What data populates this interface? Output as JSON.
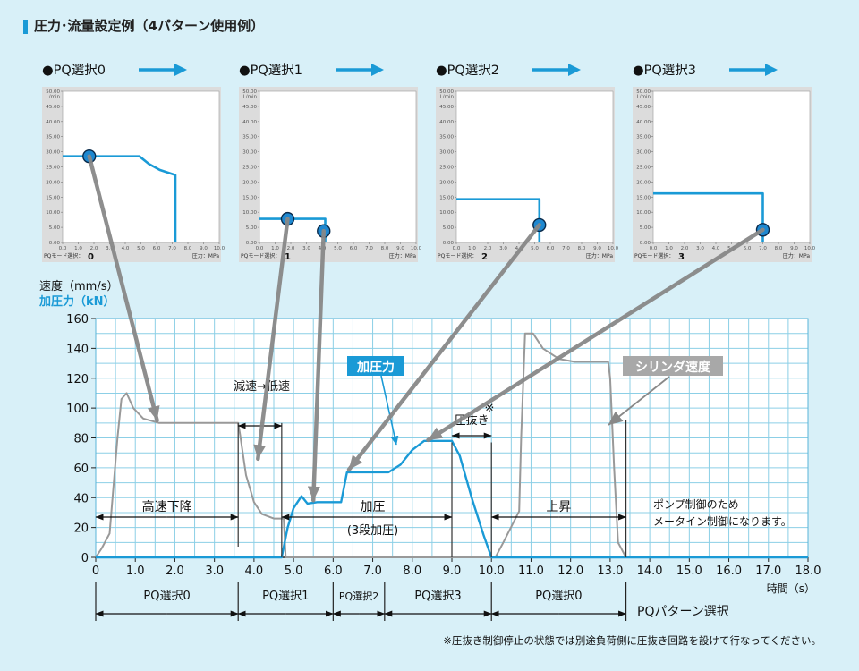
{
  "header": {
    "title": "圧力･流量設定例（4パターン使用例）"
  },
  "colors": {
    "background": "#d8f0f8",
    "accent": "#1a9ad6",
    "gray_line": "#999999",
    "grid": "#8ccfe6",
    "marker": "#1e88d0"
  },
  "pq_panels": [
    {
      "title": "●PQ選択0",
      "mode_label": "PQモード選択：0",
      "pressure_label": "圧力：MPa",
      "curve": [
        [
          0,
          28.5
        ],
        [
          4.9,
          28.5
        ],
        [
          5.5,
          26
        ],
        [
          6.2,
          24
        ],
        [
          7.2,
          22.3
        ],
        [
          7.2,
          0
        ]
      ],
      "marker": [
        1.7,
        28.5
      ]
    },
    {
      "title": "●PQ選択1",
      "mode_label": "PQモード選択：1",
      "pressure_label": "圧力：MPa",
      "curve": [
        [
          0,
          7.8
        ],
        [
          4.2,
          7.8
        ],
        [
          4.2,
          0
        ]
      ],
      "marker": [
        1.8,
        7.8
      ],
      "marker2": [
        4.1,
        3.8
      ]
    },
    {
      "title": "●PQ選択2",
      "mode_label": "PQモード選択：2",
      "pressure_label": "圧力：MPa",
      "curve": [
        [
          0,
          14.3
        ],
        [
          5.3,
          14.3
        ],
        [
          5.3,
          0
        ]
      ],
      "marker": [
        5.3,
        5.8
      ]
    },
    {
      "title": "●PQ選択3",
      "mode_label": "PQモード選択：3",
      "pressure_label": "圧力：MPa",
      "curve": [
        [
          0,
          16.2
        ],
        [
          7.0,
          16.2
        ],
        [
          7.0,
          0
        ]
      ],
      "marker": [
        7.0,
        4.2
      ]
    }
  ],
  "pq_axis": {
    "y_unit": "L/min",
    "y_ticks": [
      "0.00",
      "5.00",
      "10.00",
      "15.00",
      "20.00",
      "25.00",
      "30.00",
      "35.00",
      "40.00",
      "45.00",
      "50.00"
    ],
    "x_ticks": [
      "0.0",
      "1.0",
      "2.0",
      "3.0",
      "4.0",
      "5.0",
      "6.0",
      "7.0",
      "8.0",
      "9.0",
      "10.0"
    ]
  },
  "chart_data": {
    "type": "line",
    "ylabel": "速度（mm/s）",
    "ylabel2": "加圧力（kN）",
    "xlabel": "時間（s）",
    "xlim": [
      0,
      18
    ],
    "ylim": [
      0,
      160
    ],
    "x_ticks": [
      "0",
      "1.0",
      "2.0",
      "3.0",
      "4.0",
      "5.0",
      "6.0",
      "7.0",
      "8.0",
      "9.0",
      "10.0",
      "11.0",
      "12.0",
      "13.0",
      "14.0",
      "15.0",
      "16.0",
      "17.0",
      "18.0"
    ],
    "y_ticks": [
      "0",
      "20",
      "40",
      "60",
      "80",
      "100",
      "120",
      "140",
      "160"
    ],
    "series": [
      {
        "name": "シリンダ速度",
        "color": "#999999",
        "points": [
          [
            0,
            0
          ],
          [
            0.15,
            6
          ],
          [
            0.35,
            16
          ],
          [
            0.55,
            80
          ],
          [
            0.65,
            106
          ],
          [
            0.78,
            110
          ],
          [
            0.95,
            100
          ],
          [
            1.2,
            93
          ],
          [
            1.6,
            90
          ],
          [
            3.6,
            90
          ],
          [
            3.65,
            82
          ],
          [
            3.8,
            55
          ],
          [
            4.0,
            37
          ],
          [
            4.2,
            29
          ],
          [
            4.5,
            26
          ],
          [
            4.75,
            26
          ],
          [
            4.8,
            0
          ],
          [
            10.1,
            0
          ],
          [
            10.3,
            10
          ],
          [
            10.7,
            31
          ],
          [
            10.75,
            80
          ],
          [
            10.85,
            150
          ],
          [
            11.05,
            150
          ],
          [
            11.3,
            140
          ],
          [
            11.7,
            133
          ],
          [
            12.1,
            131
          ],
          [
            12.95,
            131
          ],
          [
            13.0,
            120
          ],
          [
            13.1,
            60
          ],
          [
            13.2,
            10
          ],
          [
            13.4,
            0
          ],
          [
            18,
            0
          ]
        ]
      },
      {
        "name": "加圧力",
        "color": "#1a9ad6",
        "points": [
          [
            0,
            0
          ],
          [
            4.7,
            0
          ],
          [
            4.85,
            20
          ],
          [
            5.0,
            33
          ],
          [
            5.2,
            41
          ],
          [
            5.35,
            36
          ],
          [
            5.6,
            37
          ],
          [
            6.2,
            37
          ],
          [
            6.35,
            57
          ],
          [
            7.4,
            57
          ],
          [
            7.7,
            62
          ],
          [
            8.0,
            72
          ],
          [
            8.3,
            78
          ],
          [
            9.0,
            78
          ],
          [
            9.2,
            68
          ],
          [
            9.5,
            40
          ],
          [
            9.8,
            15
          ],
          [
            10.0,
            0
          ],
          [
            18,
            0
          ]
        ]
      }
    ],
    "annotations": [
      {
        "text": "加圧力",
        "kind": "label"
      },
      {
        "text": "シリンダ速度",
        "kind": "label"
      },
      {
        "text": "減速→低速",
        "kind": "span"
      },
      {
        "text": "高速下降",
        "kind": "span"
      },
      {
        "text": "加圧",
        "kind": "span"
      },
      {
        "text": "(3段加圧)",
        "kind": "note"
      },
      {
        "text": "圧抜き",
        "kind": "span"
      },
      {
        "text": "※",
        "kind": "note"
      },
      {
        "text": "上昇",
        "kind": "span"
      },
      {
        "text": "ポンプ制御のため",
        "kind": "note"
      },
      {
        "text": "メータイン制御になります。",
        "kind": "note"
      }
    ],
    "pq_segments": [
      {
        "label": "PQ選択0",
        "x": [
          0,
          3.6
        ]
      },
      {
        "label": "PQ選択1",
        "x": [
          3.6,
          6.0
        ]
      },
      {
        "label": "PQ選択2",
        "x": [
          6.0,
          7.3
        ]
      },
      {
        "label": "PQ選択3",
        "x": [
          7.3,
          10.0
        ]
      },
      {
        "label": "PQ選択0",
        "x": [
          10.0,
          13.4
        ]
      }
    ],
    "pq_pattern_label": "PQパターン選択"
  },
  "footnote": "※圧抜き制御停止の状態では別途負荷側に圧抜き回路を設けて行なってください。"
}
